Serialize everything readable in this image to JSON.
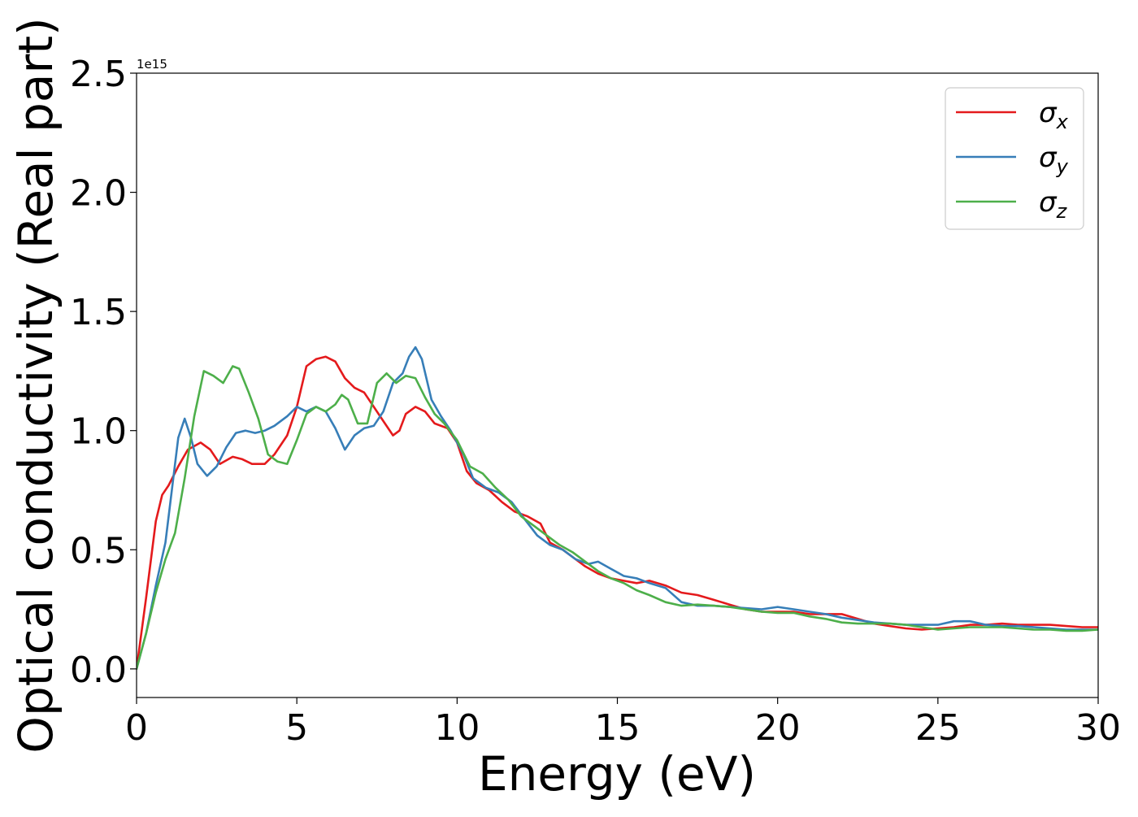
{
  "chart_data": {
    "type": "line",
    "xlabel": "Energy (eV)",
    "ylabel": "Optical conductivity (Real part)",
    "y_offset_text": "1e15",
    "xlim": [
      0,
      30
    ],
    "ylim": [
      -0.12,
      2.5
    ],
    "x_ticks": [
      0,
      5,
      10,
      15,
      20,
      25,
      30
    ],
    "x_tick_labels": [
      "0",
      "5",
      "10",
      "15",
      "20",
      "25",
      "30"
    ],
    "y_ticks": [
      0.0,
      0.5,
      1.0,
      1.5,
      2.0,
      2.5
    ],
    "y_tick_labels": [
      "0.0",
      "0.5",
      "1.0",
      "1.5",
      "2.0",
      "2.5"
    ],
    "grid": false,
    "legend_position": "top-right",
    "series": [
      {
        "name": "σx",
        "symbol": "σ",
        "subscript": "x",
        "color": "#e41a1c",
        "points": [
          [
            0,
            0
          ],
          [
            0.3,
            0.3
          ],
          [
            0.6,
            0.62
          ],
          [
            0.8,
            0.73
          ],
          [
            1.0,
            0.77
          ],
          [
            1.3,
            0.85
          ],
          [
            1.6,
            0.92
          ],
          [
            2.0,
            0.95
          ],
          [
            2.3,
            0.92
          ],
          [
            2.6,
            0.86
          ],
          [
            3.0,
            0.89
          ],
          [
            3.3,
            0.88
          ],
          [
            3.6,
            0.86
          ],
          [
            4.0,
            0.86
          ],
          [
            4.3,
            0.9
          ],
          [
            4.7,
            0.98
          ],
          [
            5.0,
            1.1
          ],
          [
            5.3,
            1.27
          ],
          [
            5.6,
            1.3
          ],
          [
            5.9,
            1.31
          ],
          [
            6.2,
            1.29
          ],
          [
            6.5,
            1.22
          ],
          [
            6.8,
            1.18
          ],
          [
            7.1,
            1.16
          ],
          [
            7.4,
            1.1
          ],
          [
            7.7,
            1.04
          ],
          [
            8.0,
            0.98
          ],
          [
            8.2,
            1.0
          ],
          [
            8.4,
            1.07
          ],
          [
            8.7,
            1.1
          ],
          [
            9.0,
            1.08
          ],
          [
            9.3,
            1.03
          ],
          [
            9.7,
            1.01
          ],
          [
            10.0,
            0.95
          ],
          [
            10.3,
            0.83
          ],
          [
            10.6,
            0.78
          ],
          [
            11.0,
            0.75
          ],
          [
            11.4,
            0.7
          ],
          [
            11.8,
            0.66
          ],
          [
            12.2,
            0.64
          ],
          [
            12.6,
            0.61
          ],
          [
            12.9,
            0.53
          ],
          [
            13.3,
            0.5
          ],
          [
            13.7,
            0.46
          ],
          [
            14.0,
            0.43
          ],
          [
            14.4,
            0.4
          ],
          [
            14.8,
            0.38
          ],
          [
            15.2,
            0.37
          ],
          [
            15.6,
            0.36
          ],
          [
            16.0,
            0.37
          ],
          [
            16.5,
            0.35
          ],
          [
            17.0,
            0.32
          ],
          [
            17.5,
            0.31
          ],
          [
            18.0,
            0.29
          ],
          [
            18.5,
            0.27
          ],
          [
            19.0,
            0.25
          ],
          [
            19.5,
            0.24
          ],
          [
            20.0,
            0.24
          ],
          [
            20.5,
            0.24
          ],
          [
            21.0,
            0.23
          ],
          [
            21.5,
            0.23
          ],
          [
            22.0,
            0.23
          ],
          [
            22.5,
            0.21
          ],
          [
            23.0,
            0.19
          ],
          [
            23.5,
            0.18
          ],
          [
            24.0,
            0.17
          ],
          [
            24.5,
            0.165
          ],
          [
            25.0,
            0.17
          ],
          [
            25.5,
            0.175
          ],
          [
            26.0,
            0.185
          ],
          [
            26.5,
            0.185
          ],
          [
            27.0,
            0.19
          ],
          [
            27.5,
            0.185
          ],
          [
            28.0,
            0.185
          ],
          [
            28.5,
            0.185
          ],
          [
            29.0,
            0.18
          ],
          [
            29.5,
            0.175
          ],
          [
            30.0,
            0.175
          ]
        ]
      },
      {
        "name": "σy",
        "symbol": "σ",
        "subscript": "y",
        "color": "#377eb8",
        "points": [
          [
            0,
            0
          ],
          [
            0.3,
            0.15
          ],
          [
            0.6,
            0.35
          ],
          [
            0.9,
            0.53
          ],
          [
            1.1,
            0.75
          ],
          [
            1.3,
            0.97
          ],
          [
            1.5,
            1.05
          ],
          [
            1.7,
            0.97
          ],
          [
            1.9,
            0.86
          ],
          [
            2.2,
            0.81
          ],
          [
            2.5,
            0.85
          ],
          [
            2.8,
            0.93
          ],
          [
            3.1,
            0.99
          ],
          [
            3.4,
            1.0
          ],
          [
            3.7,
            0.99
          ],
          [
            4.0,
            1.0
          ],
          [
            4.3,
            1.02
          ],
          [
            4.7,
            1.06
          ],
          [
            5.0,
            1.1
          ],
          [
            5.3,
            1.08
          ],
          [
            5.6,
            1.1
          ],
          [
            5.9,
            1.08
          ],
          [
            6.2,
            1.01
          ],
          [
            6.5,
            0.92
          ],
          [
            6.8,
            0.98
          ],
          [
            7.1,
            1.01
          ],
          [
            7.4,
            1.02
          ],
          [
            7.7,
            1.08
          ],
          [
            8.0,
            1.2
          ],
          [
            8.3,
            1.24
          ],
          [
            8.5,
            1.31
          ],
          [
            8.7,
            1.35
          ],
          [
            8.9,
            1.3
          ],
          [
            9.2,
            1.13
          ],
          [
            9.5,
            1.06
          ],
          [
            9.8,
            1.0
          ],
          [
            10.2,
            0.9
          ],
          [
            10.5,
            0.8
          ],
          [
            10.9,
            0.76
          ],
          [
            11.3,
            0.74
          ],
          [
            11.7,
            0.7
          ],
          [
            12.1,
            0.63
          ],
          [
            12.5,
            0.56
          ],
          [
            12.9,
            0.52
          ],
          [
            13.3,
            0.5
          ],
          [
            13.7,
            0.46
          ],
          [
            14.1,
            0.44
          ],
          [
            14.4,
            0.45
          ],
          [
            14.8,
            0.42
          ],
          [
            15.2,
            0.39
          ],
          [
            15.6,
            0.38
          ],
          [
            16.0,
            0.36
          ],
          [
            16.5,
            0.34
          ],
          [
            17.0,
            0.28
          ],
          [
            17.5,
            0.265
          ],
          [
            18.0,
            0.265
          ],
          [
            18.5,
            0.26
          ],
          [
            19.0,
            0.255
          ],
          [
            19.5,
            0.25
          ],
          [
            20.0,
            0.26
          ],
          [
            20.5,
            0.25
          ],
          [
            21.0,
            0.24
          ],
          [
            21.5,
            0.23
          ],
          [
            22.0,
            0.215
          ],
          [
            22.5,
            0.205
          ],
          [
            23.0,
            0.195
          ],
          [
            23.5,
            0.19
          ],
          [
            24.0,
            0.185
          ],
          [
            24.5,
            0.185
          ],
          [
            25.0,
            0.185
          ],
          [
            25.5,
            0.2
          ],
          [
            26.0,
            0.2
          ],
          [
            26.5,
            0.185
          ],
          [
            27.0,
            0.18
          ],
          [
            27.5,
            0.18
          ],
          [
            28.0,
            0.175
          ],
          [
            28.5,
            0.17
          ],
          [
            29.0,
            0.165
          ],
          [
            29.5,
            0.165
          ],
          [
            30.0,
            0.165
          ]
        ]
      },
      {
        "name": "σz",
        "symbol": "σ",
        "subscript": "z",
        "color": "#4daf4a",
        "points": [
          [
            0,
            0
          ],
          [
            0.3,
            0.15
          ],
          [
            0.6,
            0.32
          ],
          [
            0.9,
            0.46
          ],
          [
            1.2,
            0.57
          ],
          [
            1.5,
            0.8
          ],
          [
            1.8,
            1.06
          ],
          [
            2.1,
            1.25
          ],
          [
            2.4,
            1.23
          ],
          [
            2.7,
            1.2
          ],
          [
            3.0,
            1.27
          ],
          [
            3.2,
            1.26
          ],
          [
            3.5,
            1.16
          ],
          [
            3.8,
            1.05
          ],
          [
            4.1,
            0.9
          ],
          [
            4.4,
            0.87
          ],
          [
            4.7,
            0.86
          ],
          [
            5.0,
            0.96
          ],
          [
            5.3,
            1.07
          ],
          [
            5.6,
            1.1
          ],
          [
            5.9,
            1.08
          ],
          [
            6.2,
            1.11
          ],
          [
            6.4,
            1.15
          ],
          [
            6.6,
            1.13
          ],
          [
            6.9,
            1.03
          ],
          [
            7.2,
            1.03
          ],
          [
            7.5,
            1.2
          ],
          [
            7.8,
            1.24
          ],
          [
            8.1,
            1.2
          ],
          [
            8.4,
            1.23
          ],
          [
            8.7,
            1.22
          ],
          [
            9.0,
            1.14
          ],
          [
            9.3,
            1.07
          ],
          [
            9.6,
            1.03
          ],
          [
            10.0,
            0.96
          ],
          [
            10.4,
            0.85
          ],
          [
            10.8,
            0.82
          ],
          [
            11.2,
            0.76
          ],
          [
            11.6,
            0.71
          ],
          [
            12.0,
            0.64
          ],
          [
            12.4,
            0.6
          ],
          [
            12.8,
            0.56
          ],
          [
            13.2,
            0.52
          ],
          [
            13.6,
            0.49
          ],
          [
            14.0,
            0.45
          ],
          [
            14.4,
            0.41
          ],
          [
            14.8,
            0.38
          ],
          [
            15.2,
            0.36
          ],
          [
            15.6,
            0.33
          ],
          [
            16.0,
            0.31
          ],
          [
            16.5,
            0.28
          ],
          [
            17.0,
            0.265
          ],
          [
            17.5,
            0.27
          ],
          [
            18.0,
            0.265
          ],
          [
            18.5,
            0.26
          ],
          [
            19.0,
            0.25
          ],
          [
            19.5,
            0.24
          ],
          [
            20.0,
            0.235
          ],
          [
            20.5,
            0.235
          ],
          [
            21.0,
            0.22
          ],
          [
            21.5,
            0.21
          ],
          [
            22.0,
            0.195
          ],
          [
            22.5,
            0.19
          ],
          [
            23.0,
            0.19
          ],
          [
            23.5,
            0.19
          ],
          [
            24.0,
            0.185
          ],
          [
            24.5,
            0.175
          ],
          [
            25.0,
            0.165
          ],
          [
            25.5,
            0.17
          ],
          [
            26.0,
            0.175
          ],
          [
            26.5,
            0.175
          ],
          [
            27.0,
            0.175
          ],
          [
            27.5,
            0.17
          ],
          [
            28.0,
            0.165
          ],
          [
            28.5,
            0.165
          ],
          [
            29.0,
            0.16
          ],
          [
            29.5,
            0.16
          ],
          [
            30.0,
            0.165
          ]
        ]
      }
    ]
  }
}
